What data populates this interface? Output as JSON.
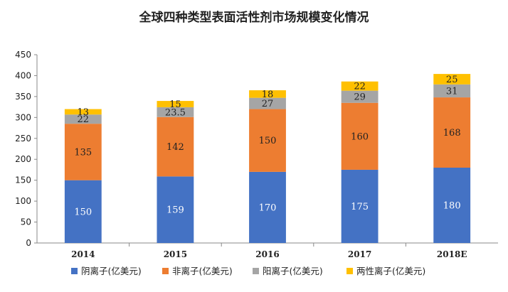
{
  "chart_data": {
    "type": "bar",
    "stacked": true,
    "title": "全球四种类型表面活性剂市场规模变化情况",
    "categories": [
      "2014",
      "2015",
      "2016",
      "2017",
      "2018E"
    ],
    "series": [
      {
        "name": "阴离子(亿美元)",
        "values": [
          150,
          159,
          170,
          175,
          180
        ],
        "color": "#4472C4",
        "label_color": "#ffffff"
      },
      {
        "name": "非离子(亿美元)",
        "values": [
          135,
          142,
          150,
          160,
          168
        ],
        "color": "#ED7D31",
        "label_color": "#222222"
      },
      {
        "name": "阳离子(亿美元)",
        "values": [
          22,
          23.5,
          27,
          29,
          31
        ],
        "color": "#A5A5A5",
        "label_color": "#222222"
      },
      {
        "name": "两性离子(亿美元)",
        "values": [
          13,
          15,
          18,
          22,
          25
        ],
        "color": "#FFC000",
        "label_color": "#222222"
      }
    ],
    "ylim": [
      0,
      450
    ],
    "yticks": [
      0,
      50,
      100,
      150,
      200,
      250,
      300,
      350,
      400,
      450
    ],
    "xlabel": "",
    "ylabel": "",
    "legend_position": "bottom",
    "grid": false
  }
}
